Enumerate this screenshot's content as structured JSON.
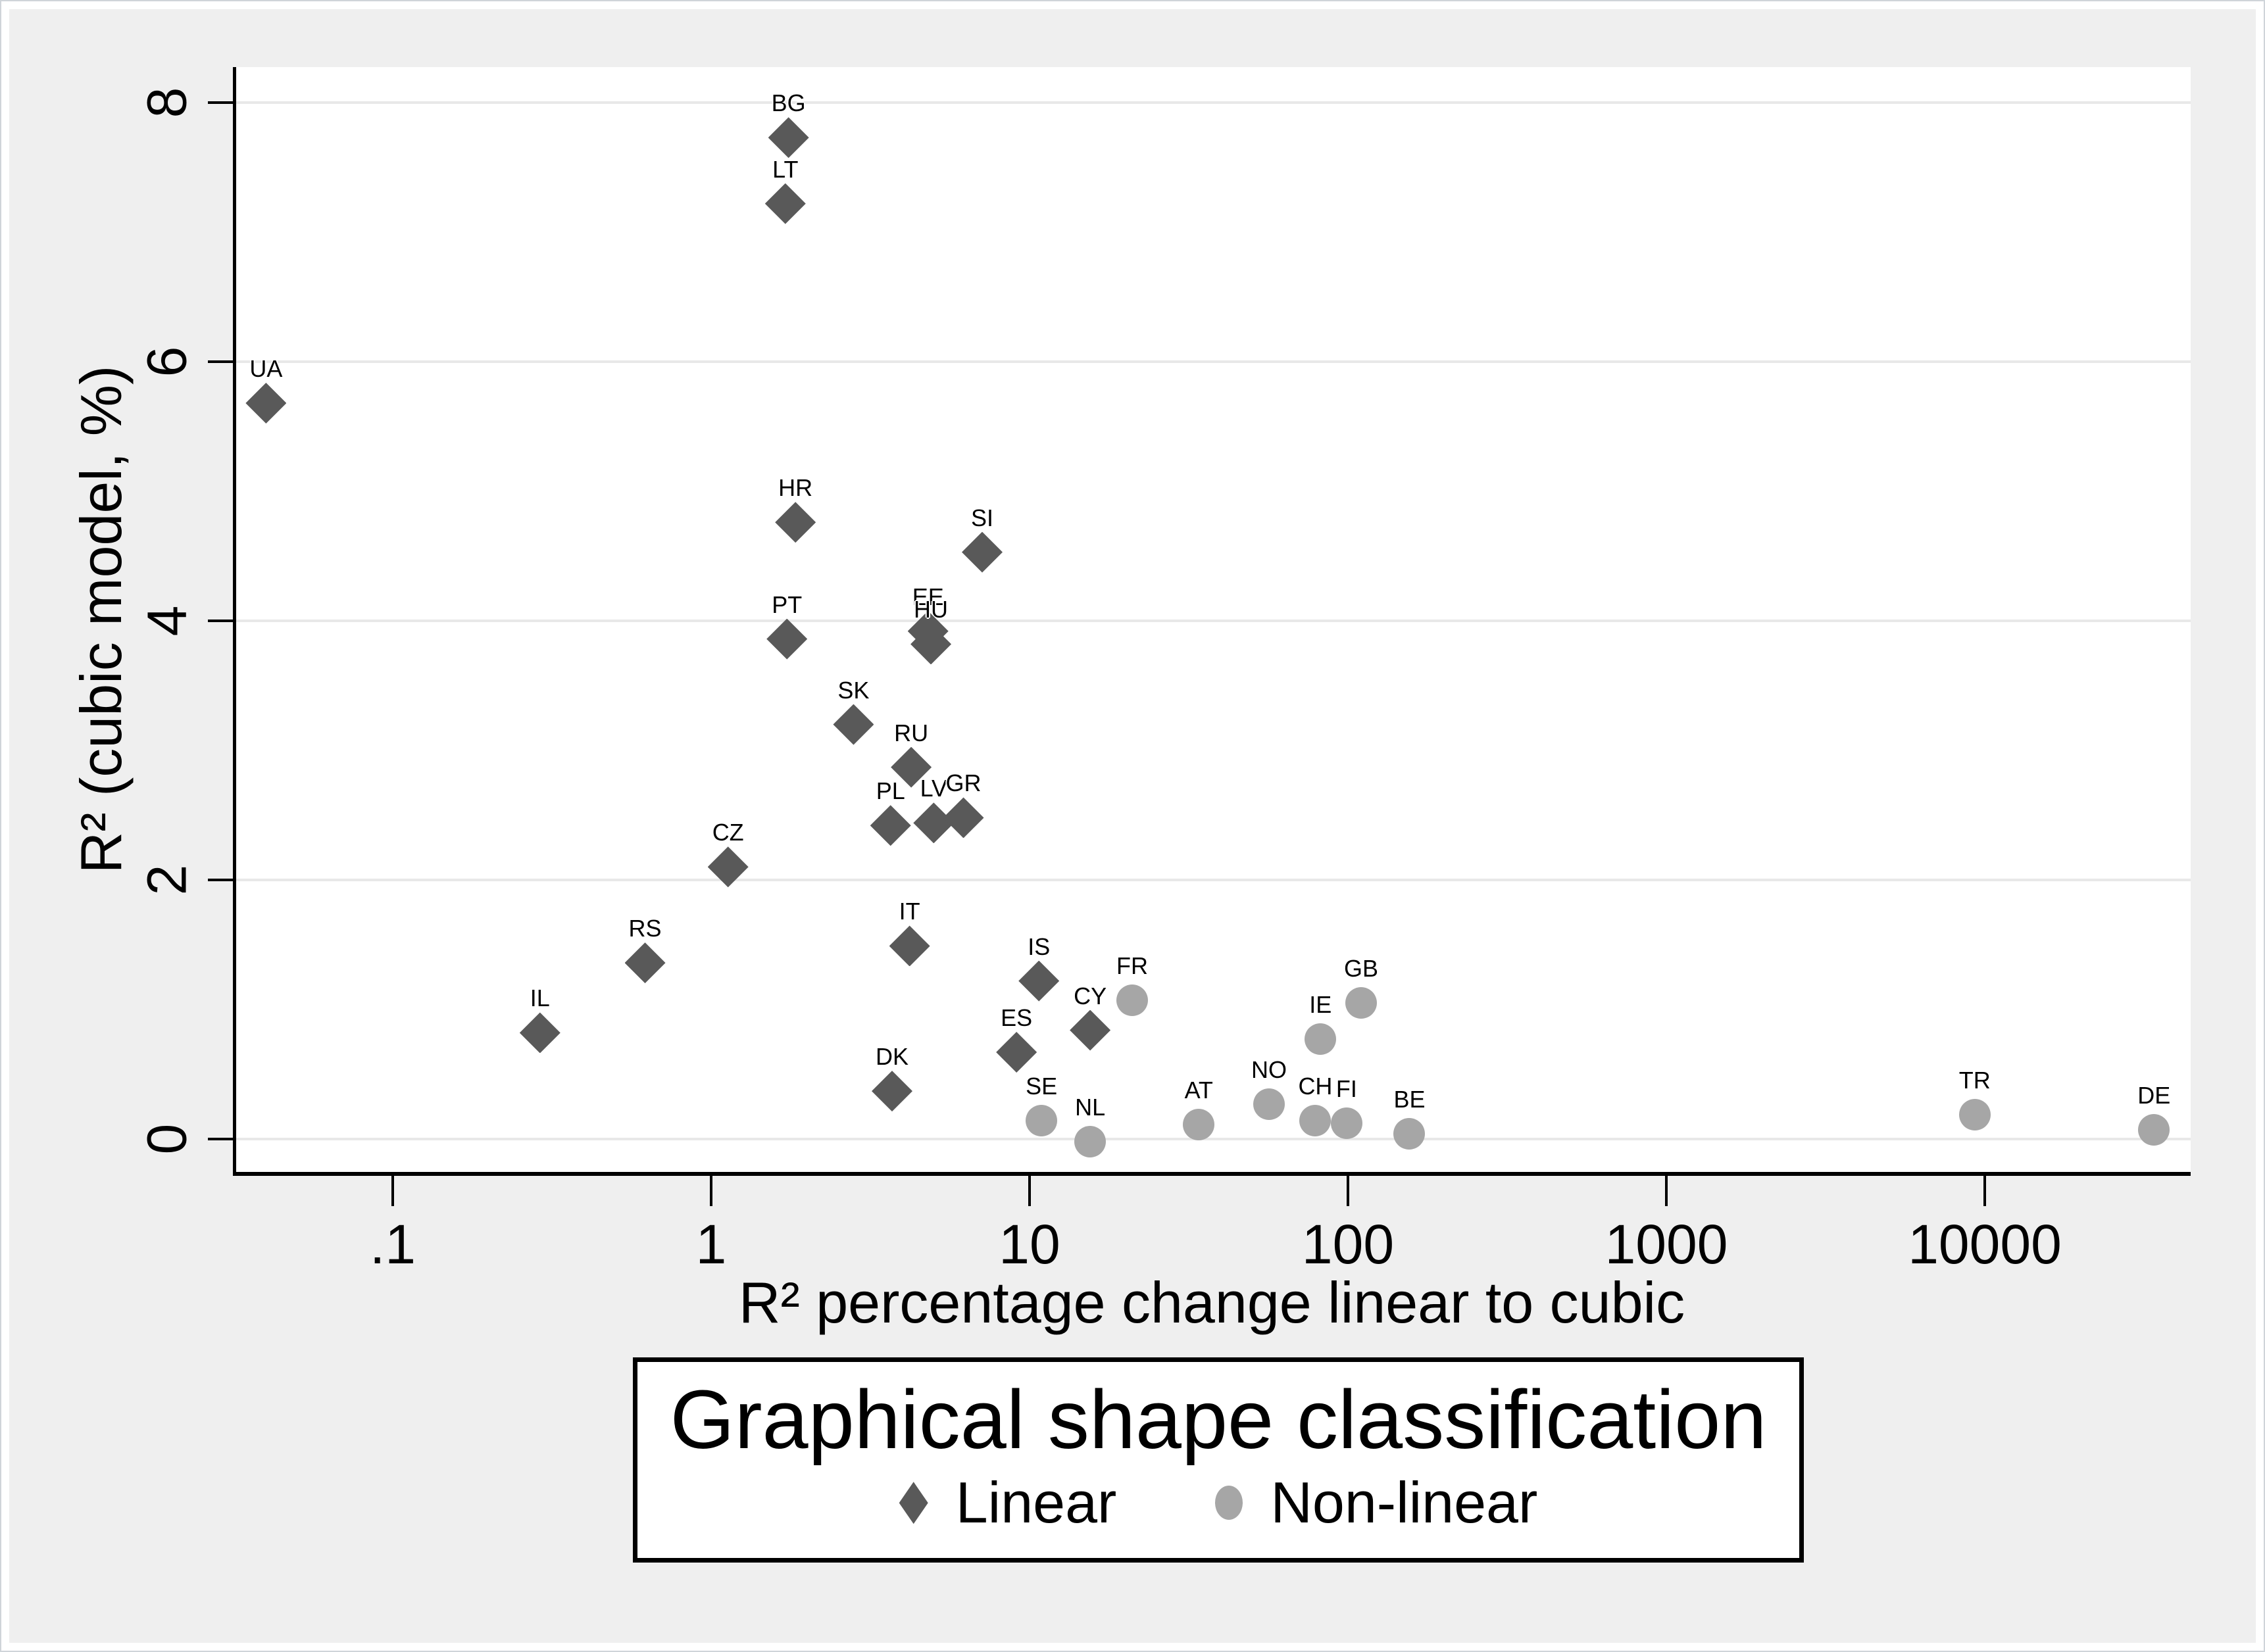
{
  "figure": {
    "background_color": "#efefef",
    "plot_background_color": "#ffffff",
    "gridline_color": "#e8e8e8",
    "axis_color": "#000000"
  },
  "chart_data": {
    "type": "scatter",
    "title": "",
    "x_axis": {
      "label": "R² percentage change linear to cubic",
      "scale": "log",
      "ticks": [
        0.1,
        1,
        10,
        100,
        1000,
        10000
      ],
      "tick_labels": [
        ".1",
        "1",
        "10",
        "100",
        "1000",
        "10000"
      ],
      "range": [
        0.0315,
        44400
      ],
      "grid": false
    },
    "y_axis": {
      "label": "R² (cubic model, %)",
      "scale": "linear",
      "ticks": [
        0,
        2,
        4,
        6,
        8
      ],
      "tick_labels": [
        "0",
        "2",
        "4",
        "6",
        "8"
      ],
      "range": [
        -0.25,
        8.27
      ],
      "grid": true
    },
    "legend": {
      "title": "Graphical shape classification",
      "position": "bottom",
      "entries": [
        {
          "label": "Linear",
          "marker": "diamond",
          "color": "#595959"
        },
        {
          "label": "Non-linear",
          "marker": "circle",
          "color": "#a6a6a6"
        }
      ]
    },
    "series": [
      {
        "name": "Linear",
        "marker": "diamond",
        "color": "#595959",
        "points": [
          {
            "label": "UA",
            "x": 0.04,
            "y": 5.68
          },
          {
            "label": "BG",
            "x": 1.75,
            "y": 7.73
          },
          {
            "label": "LT",
            "x": 1.71,
            "y": 7.22
          },
          {
            "label": "HR",
            "x": 1.84,
            "y": 4.76
          },
          {
            "label": "SI",
            "x": 7.1,
            "y": 4.53
          },
          {
            "label": "PT",
            "x": 1.73,
            "y": 3.86
          },
          {
            "label": "EE",
            "x": 4.8,
            "y": 3.92
          },
          {
            "label": "HU",
            "x": 4.9,
            "y": 3.82
          },
          {
            "label": "SK",
            "x": 2.8,
            "y": 3.2
          },
          {
            "label": "RU",
            "x": 4.25,
            "y": 2.87
          },
          {
            "label": "PL",
            "x": 3.66,
            "y": 2.42
          },
          {
            "label": "LV",
            "x": 5.0,
            "y": 2.44
          },
          {
            "label": "GR",
            "x": 6.2,
            "y": 2.48
          },
          {
            "label": "CZ",
            "x": 1.13,
            "y": 2.1
          },
          {
            "label": "RS",
            "x": 0.62,
            "y": 1.36
          },
          {
            "label": "IL",
            "x": 0.29,
            "y": 0.82
          },
          {
            "label": "IT",
            "x": 4.2,
            "y": 1.49
          },
          {
            "label": "IS",
            "x": 10.7,
            "y": 1.22
          },
          {
            "label": "CY",
            "x": 15.5,
            "y": 0.84
          },
          {
            "label": "ES",
            "x": 9.1,
            "y": 0.67
          },
          {
            "label": "DK",
            "x": 3.7,
            "y": 0.37
          }
        ]
      },
      {
        "name": "Non-linear",
        "marker": "circle",
        "color": "#a6a6a6",
        "points": [
          {
            "label": "FR",
            "x": 21,
            "y": 1.07
          },
          {
            "label": "GB",
            "x": 110,
            "y": 1.05
          },
          {
            "label": "IE",
            "x": 82,
            "y": 0.77
          },
          {
            "label": "NO",
            "x": 56.5,
            "y": 0.27
          },
          {
            "label": "AT",
            "x": 34,
            "y": 0.11
          },
          {
            "label": "CH",
            "x": 79,
            "y": 0.14
          },
          {
            "label": "FI",
            "x": 99,
            "y": 0.12
          },
          {
            "label": "BE",
            "x": 156,
            "y": 0.04
          },
          {
            "label": "SE",
            "x": 10.9,
            "y": 0.14
          },
          {
            "label": "NL",
            "x": 15.5,
            "y": -0.02
          },
          {
            "label": "TR",
            "x": 9300,
            "y": 0.19
          },
          {
            "label": "DE",
            "x": 34000,
            "y": 0.07
          }
        ]
      }
    ]
  }
}
